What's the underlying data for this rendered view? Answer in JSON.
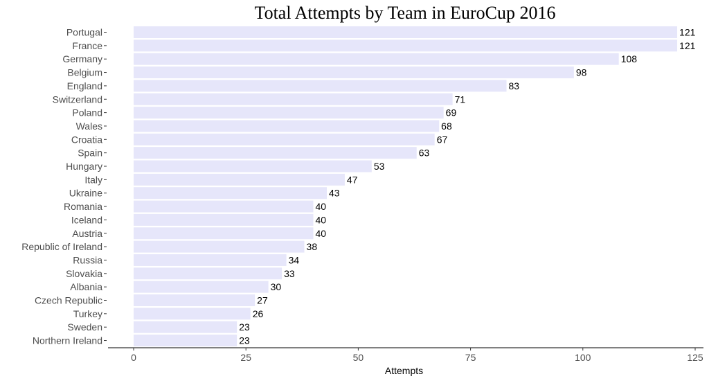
{
  "chart_data": {
    "type": "bar",
    "orientation": "horizontal",
    "title": "Total Attempts by Team in EuroCup 2016",
    "xlabel": "Attempts",
    "ylabel": "",
    "xlim": [
      0,
      125
    ],
    "ticks": [
      0,
      25,
      50,
      75,
      100,
      125
    ],
    "categories": [
      "Portugal",
      "France",
      "Germany",
      "Belgium",
      "England",
      "Switzerland",
      "Poland",
      "Wales",
      "Croatia",
      "Spain",
      "Hungary",
      "Italy",
      "Ukraine",
      "Romania",
      "Iceland",
      "Austria",
      "Republic of Ireland",
      "Russia",
      "Slovakia",
      "Albania",
      "Czech Republic",
      "Turkey",
      "Sweden",
      "Northern Ireland"
    ],
    "values": [
      121,
      121,
      108,
      98,
      83,
      71,
      69,
      68,
      67,
      63,
      53,
      47,
      43,
      40,
      40,
      40,
      38,
      34,
      33,
      30,
      27,
      26,
      23,
      23
    ],
    "bar_color": "#e6e6fa",
    "grid": false,
    "legend": "none"
  }
}
